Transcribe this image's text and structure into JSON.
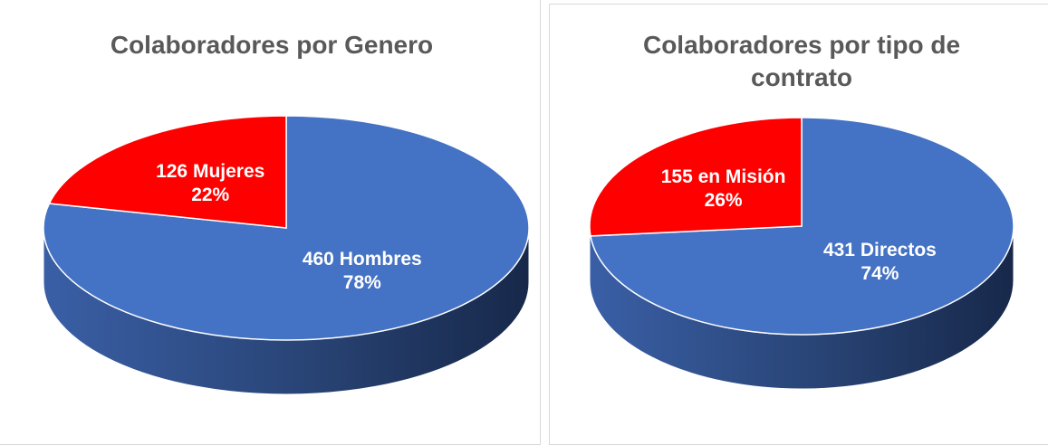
{
  "chart_data": [
    {
      "type": "pie",
      "title": "Colaboradores por Genero",
      "categories": [
        "Hombres",
        "Mujeres"
      ],
      "values": [
        460,
        126
      ],
      "value_labels": [
        "460 Hombres",
        "126 Mujeres"
      ],
      "percent_labels": [
        "78%",
        "22%"
      ],
      "colors": [
        "#4472c4",
        "#ff0000"
      ]
    },
    {
      "type": "pie",
      "title": "Colaboradores por tipo de contrato",
      "categories": [
        "Directos",
        "en Misión"
      ],
      "values": [
        431,
        155
      ],
      "value_labels": [
        "431 Directos",
        "155 en Misión"
      ],
      "percent_labels": [
        "74%",
        "26%"
      ],
      "colors": [
        "#4472c4",
        "#ff0000"
      ]
    }
  ]
}
